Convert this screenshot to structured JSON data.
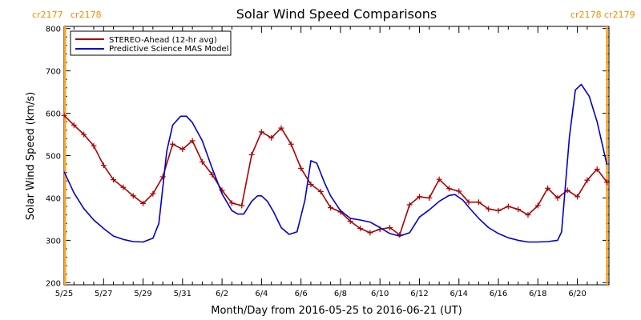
{
  "chart_data": {
    "type": "line",
    "title": "Solar Wind Speed Comparisons",
    "xlabel": "Month/Day from 2016-05-25 to 2016-06-21 (UT)",
    "ylabel": "Solar Wind Speed (km/s)",
    "xlim": [
      0,
      27.6
    ],
    "ylim": [
      195,
      805
    ],
    "x_tick_labels": [
      {
        "x": 0,
        "label": "5/25"
      },
      {
        "x": 2,
        "label": "5/27"
      },
      {
        "x": 4,
        "label": "5/29"
      },
      {
        "x": 6,
        "label": "5/31"
      },
      {
        "x": 8,
        "label": "6/2"
      },
      {
        "x": 10,
        "label": "6/4"
      },
      {
        "x": 12,
        "label": "6/6"
      },
      {
        "x": 14,
        "label": "6/8"
      },
      {
        "x": 16,
        "label": "6/10"
      },
      {
        "x": 18,
        "label": "6/12"
      },
      {
        "x": 20,
        "label": "6/14"
      },
      {
        "x": 22,
        "label": "6/16"
      },
      {
        "x": 24,
        "label": "6/18"
      },
      {
        "x": 26,
        "label": "6/20"
      }
    ],
    "y_ticks": [
      200,
      300,
      400,
      500,
      600,
      700,
      800
    ],
    "x_unit_note": "x in days since 5/25",
    "carrington_markers": [
      {
        "x": 0.05,
        "label_left": "cr2177",
        "label_right": "cr2178"
      },
      {
        "x": 27.5,
        "label_left": "cr2178",
        "label_right": "cr2179"
      }
    ],
    "legend_position": "top-left",
    "series": [
      {
        "name": "STEREO-Ahead (12-hr avg)",
        "color": "#aa0000",
        "marker": "plus",
        "points": [
          [
            0,
            595
          ],
          [
            0.5,
            572
          ],
          [
            1,
            550
          ],
          [
            1.5,
            523
          ],
          [
            2,
            477
          ],
          [
            2.5,
            443
          ],
          [
            3,
            425
          ],
          [
            3.5,
            405
          ],
          [
            4,
            387
          ],
          [
            4.5,
            410
          ],
          [
            5,
            450
          ],
          [
            5.5,
            527
          ],
          [
            6,
            515
          ],
          [
            6.5,
            535
          ],
          [
            7,
            485
          ],
          [
            7.5,
            455
          ],
          [
            8,
            418
          ],
          [
            8.5,
            388
          ],
          [
            9,
            382
          ],
          [
            9.5,
            502
          ],
          [
            10,
            556
          ],
          [
            10.5,
            542
          ],
          [
            11,
            565
          ],
          [
            11.5,
            527
          ],
          [
            12,
            470
          ],
          [
            12.5,
            432
          ],
          [
            13,
            415
          ],
          [
            13.5,
            377
          ],
          [
            14,
            367
          ],
          [
            14.5,
            345
          ],
          [
            15,
            328
          ],
          [
            15.5,
            318
          ],
          [
            16,
            326
          ],
          [
            16.5,
            330
          ],
          [
            17,
            313
          ],
          [
            17.5,
            384
          ],
          [
            18,
            403
          ],
          [
            18.5,
            400
          ],
          [
            19,
            444
          ],
          [
            19.5,
            422
          ],
          [
            20,
            416
          ],
          [
            20.5,
            390
          ],
          [
            21,
            390
          ],
          [
            21.5,
            374
          ],
          [
            22,
            370
          ],
          [
            22.5,
            380
          ],
          [
            23,
            373
          ],
          [
            23.5,
            360
          ],
          [
            24,
            382
          ],
          [
            24.5,
            423
          ],
          [
            25,
            400
          ],
          [
            25.5,
            418
          ],
          [
            26,
            403
          ],
          [
            26.5,
            442
          ],
          [
            27,
            468
          ],
          [
            27.5,
            437
          ]
        ]
      },
      {
        "name": "Predictive Science MAS Model",
        "color": "#0000cc",
        "marker": "none",
        "points": [
          [
            0,
            462
          ],
          [
            0.5,
            412
          ],
          [
            1,
            375
          ],
          [
            1.5,
            348
          ],
          [
            2,
            328
          ],
          [
            2.5,
            310
          ],
          [
            3,
            302
          ],
          [
            3.5,
            297
          ],
          [
            4,
            296
          ],
          [
            4.5,
            305
          ],
          [
            4.8,
            340
          ],
          [
            5.2,
            510
          ],
          [
            5.5,
            572
          ],
          [
            5.9,
            593
          ],
          [
            6.2,
            593
          ],
          [
            6.5,
            578
          ],
          [
            7,
            535
          ],
          [
            7.5,
            470
          ],
          [
            8,
            410
          ],
          [
            8.5,
            370
          ],
          [
            8.8,
            362
          ],
          [
            9.1,
            362
          ],
          [
            9.5,
            392
          ],
          [
            9.8,
            405
          ],
          [
            10,
            405
          ],
          [
            10.3,
            392
          ],
          [
            10.6,
            368
          ],
          [
            11,
            330
          ],
          [
            11.4,
            314
          ],
          [
            11.8,
            320
          ],
          [
            12.2,
            395
          ],
          [
            12.5,
            488
          ],
          [
            12.8,
            482
          ],
          [
            13.2,
            435
          ],
          [
            13.5,
            405
          ],
          [
            14,
            370
          ],
          [
            14.5,
            352
          ],
          [
            15,
            348
          ],
          [
            15.5,
            343
          ],
          [
            16,
            330
          ],
          [
            16.5,
            316
          ],
          [
            17,
            310
          ],
          [
            17.5,
            318
          ],
          [
            18,
            355
          ],
          [
            18.5,
            372
          ],
          [
            19,
            392
          ],
          [
            19.5,
            406
          ],
          [
            19.8,
            408
          ],
          [
            20.2,
            395
          ],
          [
            20.5,
            378
          ],
          [
            21,
            352
          ],
          [
            21.5,
            330
          ],
          [
            22,
            316
          ],
          [
            22.5,
            306
          ],
          [
            23,
            300
          ],
          [
            23.5,
            296
          ],
          [
            24,
            296
          ],
          [
            24.5,
            297
          ],
          [
            25,
            300
          ],
          [
            25.2,
            320
          ],
          [
            25.6,
            545
          ],
          [
            25.9,
            655
          ],
          [
            26.2,
            668
          ],
          [
            26.6,
            640
          ],
          [
            27,
            580
          ],
          [
            27.5,
            478
          ]
        ]
      }
    ]
  }
}
